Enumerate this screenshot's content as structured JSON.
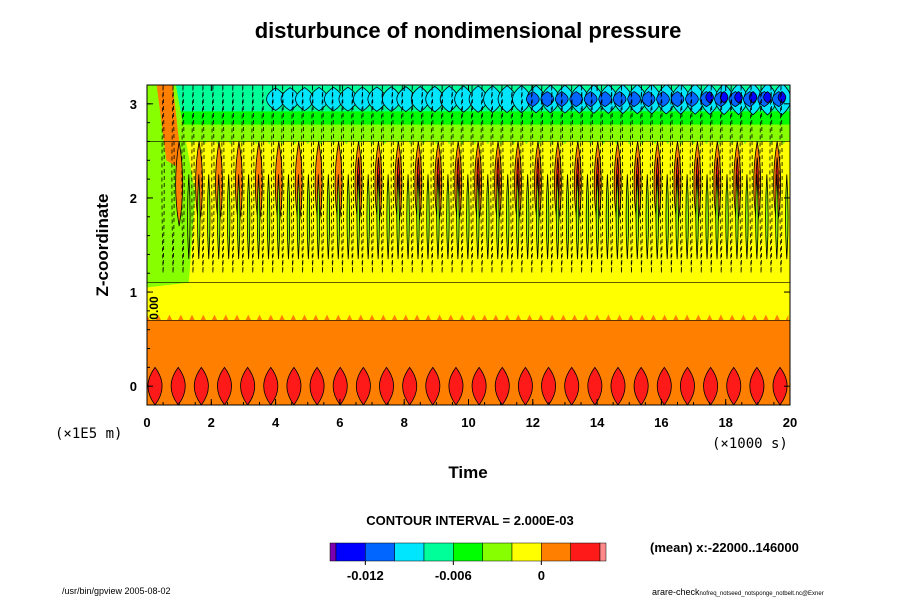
{
  "chart_data": {
    "type": "heatmap",
    "title": "disturbunce of nondimensional pressure",
    "xlabel": "Time",
    "ylabel": "Z-coordinate",
    "x_unit": "(×1000 s)",
    "y_unit": "(×1E5 m)",
    "xlim": [
      0,
      20
    ],
    "ylim": [
      -0.2,
      3.2
    ],
    "x_ticks": [
      "0",
      "2",
      "4",
      "6",
      "8",
      "10",
      "12",
      "14",
      "16",
      "18",
      "20"
    ],
    "y_ticks": [
      "0",
      "1",
      "2",
      "3"
    ],
    "contour_interval_label": "CONTOUR INTERVAL = 2.000E-03",
    "contour_interval": 0.002,
    "contour_label": "0.00",
    "colorbar": {
      "tick_labels": [
        "-0.012",
        "-0.006",
        "0"
      ],
      "colors": [
        "#7a00b0",
        "#0000ff",
        "#0066ff",
        "#00e6ff",
        "#00ff99",
        "#00ff00",
        "#88ff00",
        "#ffff00",
        "#ff8000",
        "#ff1a1a",
        "#ff8888"
      ]
    },
    "bands": [
      {
        "z": [
          -0.2,
          0.25
        ],
        "value_range": [
          0.002,
          0.004
        ],
        "description": "red cells"
      },
      {
        "z": [
          0.25,
          0.7
        ],
        "value_range": [
          0.0,
          0.002
        ],
        "description": "orange"
      },
      {
        "z": [
          0.7,
          1.8
        ],
        "value_range": [
          -0.002,
          0.0
        ],
        "description": "yellow"
      },
      {
        "z": [
          1.8,
          2.6
        ],
        "value_range": [
          -0.004,
          0.002
        ],
        "description": "yellow/green with orange/red cells"
      },
      {
        "z": [
          2.6,
          3.2
        ],
        "value_range": [
          -0.012,
          -0.004
        ],
        "description": "green to blue, decreasing with time"
      }
    ]
  },
  "annotations": {
    "mean": "(mean) x:-22000..146000",
    "footer_left": "/usr/bin/gpview 2005-08-02",
    "footer_right_main": "arare-check",
    "footer_right_sub": "nofreq_notseed_notsponge_notbelt.nc@Exner"
  }
}
